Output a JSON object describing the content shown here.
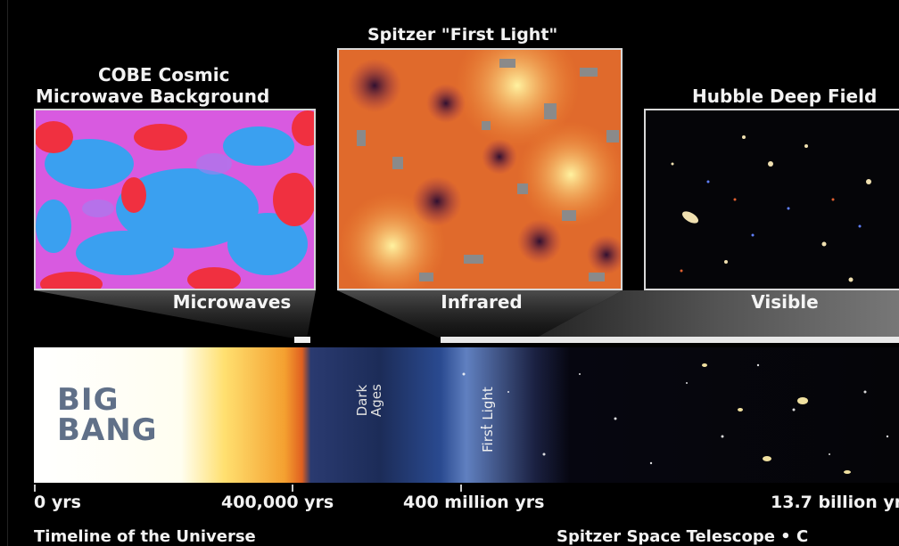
{
  "panels": {
    "cobe": {
      "title_line1": "COBE Cosmic",
      "title_line2": "Microwave Background",
      "band": "Microwaves"
    },
    "spitzer": {
      "title": "Spitzer \"First Light\"",
      "band": "Infrared"
    },
    "hubble": {
      "title": "Hubble Deep Field",
      "band": "Visible"
    }
  },
  "timeline": {
    "big_bang_line1": "BIG",
    "big_bang_line2": "BANG",
    "dark_ages_line1": "Dark",
    "dark_ages_line2": "Ages",
    "first_light": "First Light",
    "ticks": [
      "0 yrs",
      "400,000 yrs",
      "400 million yrs",
      "13.7 billion yrs"
    ]
  },
  "footer": {
    "left": "Timeline of the Universe",
    "right": "Spitzer Space Telescope • C"
  },
  "colors": {
    "background": "#000000",
    "cobe_blue": "#3aa0f0",
    "cobe_pink": "#e060e0",
    "cobe_red": "#f03040",
    "spitzer_orange": "#e8702a",
    "bigbang_yellow": "#ffd060"
  }
}
